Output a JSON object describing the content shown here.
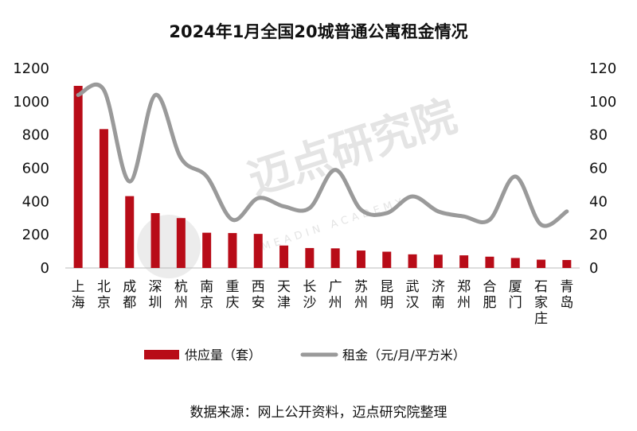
{
  "chart_data": {
    "type": "bar+line",
    "title": "2024年1月全国20城普通公寓租金情况",
    "categories": [
      "上海",
      "北京",
      "成都",
      "深圳",
      "杭州",
      "南京",
      "重庆",
      "西安",
      "天津",
      "长沙",
      "广州",
      "苏州",
      "昆明",
      "武汉",
      "济南",
      "郑州",
      "合肥",
      "厦门",
      "石家庄",
      "青岛"
    ],
    "series": [
      {
        "name": "供应量（套）",
        "type": "bar",
        "axis": "left",
        "color": "#b80c18",
        "values": [
          1095,
          835,
          432,
          330,
          300,
          212,
          210,
          205,
          135,
          120,
          118,
          105,
          98,
          82,
          80,
          76,
          68,
          60,
          50,
          48
        ]
      },
      {
        "name": "租金（元/月/平方米）",
        "type": "line",
        "axis": "right",
        "color": "#9a9a9a",
        "values": [
          104,
          107,
          52,
          104,
          66,
          55,
          29,
          42,
          37,
          36,
          59,
          35,
          33,
          43,
          34,
          31,
          29,
          55,
          26,
          34
        ]
      }
    ],
    "y_left": {
      "min": 0,
      "max": 1200,
      "ticks": [
        0,
        200,
        400,
        600,
        800,
        1000,
        1200
      ]
    },
    "y_right": {
      "min": 0,
      "max": 120,
      "ticks": [
        0,
        20,
        40,
        60,
        80,
        100,
        120
      ]
    },
    "grid": false,
    "legend": "bottom"
  },
  "watermark": {
    "text": "迈点研究院",
    "sub": "MEADIN ACADEMY"
  },
  "source": "数据来源：网上公开资料，迈点研究院整理"
}
